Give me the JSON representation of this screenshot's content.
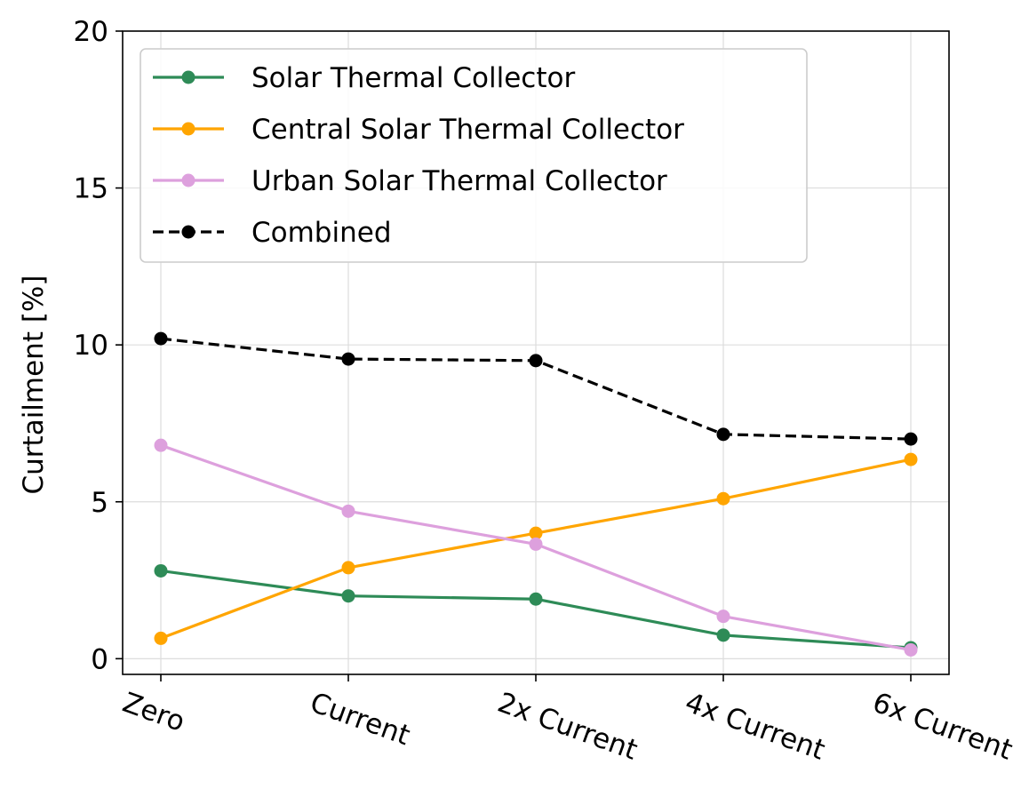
{
  "chart_data": {
    "type": "line",
    "title": "",
    "xlabel": "",
    "ylabel": "Curtailment [%]",
    "categories": [
      "Zero",
      "Current",
      "2x Current",
      "4x Current",
      "6x Current"
    ],
    "ylim": [
      -0.5,
      20
    ],
    "yticks": [
      0,
      5,
      10,
      15,
      20
    ],
    "grid": true,
    "legend_position": "top-left",
    "series": [
      {
        "name": "Solar Thermal Collector",
        "color": "#2e8b57",
        "dashed": false,
        "values": [
          2.8,
          2.0,
          1.9,
          0.75,
          0.35
        ]
      },
      {
        "name": "Central Solar Thermal Collector",
        "color": "#ffa500",
        "dashed": false,
        "values": [
          0.65,
          2.9,
          4.0,
          5.1,
          6.35
        ]
      },
      {
        "name": "Urban Solar Thermal Collector",
        "color": "#dda0dd",
        "dashed": false,
        "values": [
          6.8,
          4.7,
          3.65,
          1.35,
          0.28
        ]
      },
      {
        "name": "Combined",
        "color": "#000000",
        "dashed": true,
        "values": [
          10.2,
          9.55,
          9.5,
          7.15,
          7.0
        ]
      }
    ]
  }
}
